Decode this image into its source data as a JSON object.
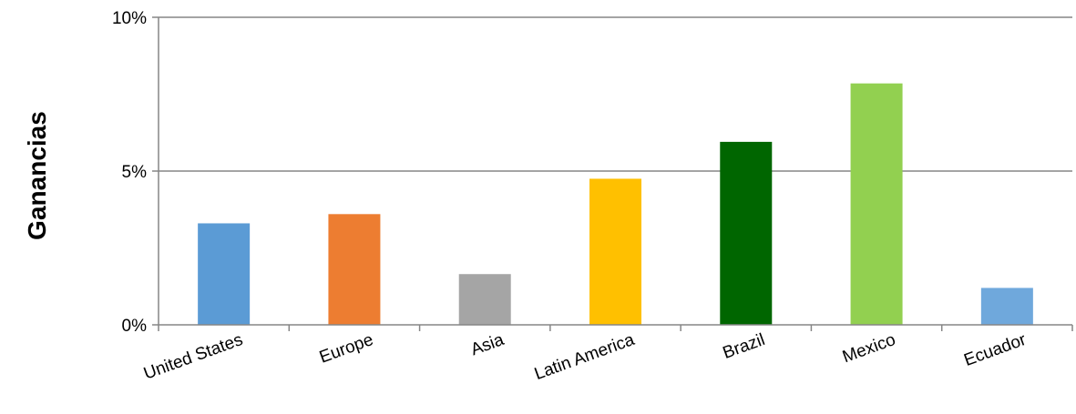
{
  "chart_data": {
    "type": "bar",
    "ylabel": "Ganancias",
    "ylim": [
      0,
      10
    ],
    "yticks": [
      {
        "value": 0,
        "label": "0%"
      },
      {
        "value": 5,
        "label": "5%"
      },
      {
        "value": 10,
        "label": "10%"
      }
    ],
    "grid": true,
    "categories": [
      "United States",
      "Europe",
      "Asia",
      "Latin America",
      "Brazil",
      "Mexico",
      "Ecuador"
    ],
    "values": [
      3.3,
      3.6,
      1.65,
      4.75,
      5.95,
      7.85,
      1.2
    ],
    "colors": [
      "#5b9bd5",
      "#ed7d31",
      "#a5a5a5",
      "#ffc000",
      "#006600",
      "#92d050",
      "#6fa8dc"
    ]
  }
}
